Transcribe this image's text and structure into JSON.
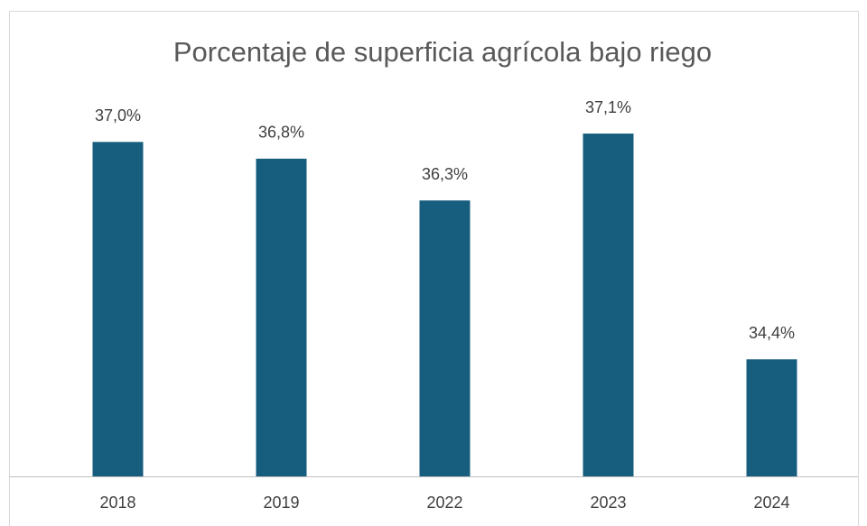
{
  "chart_data": {
    "type": "bar",
    "title": "Porcentaje de superficia agrícola bajo riego",
    "categories": [
      "2018",
      "2019",
      "2022",
      "2023",
      "2024"
    ],
    "values": [
      37.0,
      36.8,
      36.3,
      37.1,
      34.4
    ],
    "value_labels": [
      "37,0%",
      "36,8%",
      "36,3%",
      "37,1%",
      "34,4%"
    ],
    "color": "#175d7e",
    "ylim": [
      33,
      37.5
    ]
  }
}
